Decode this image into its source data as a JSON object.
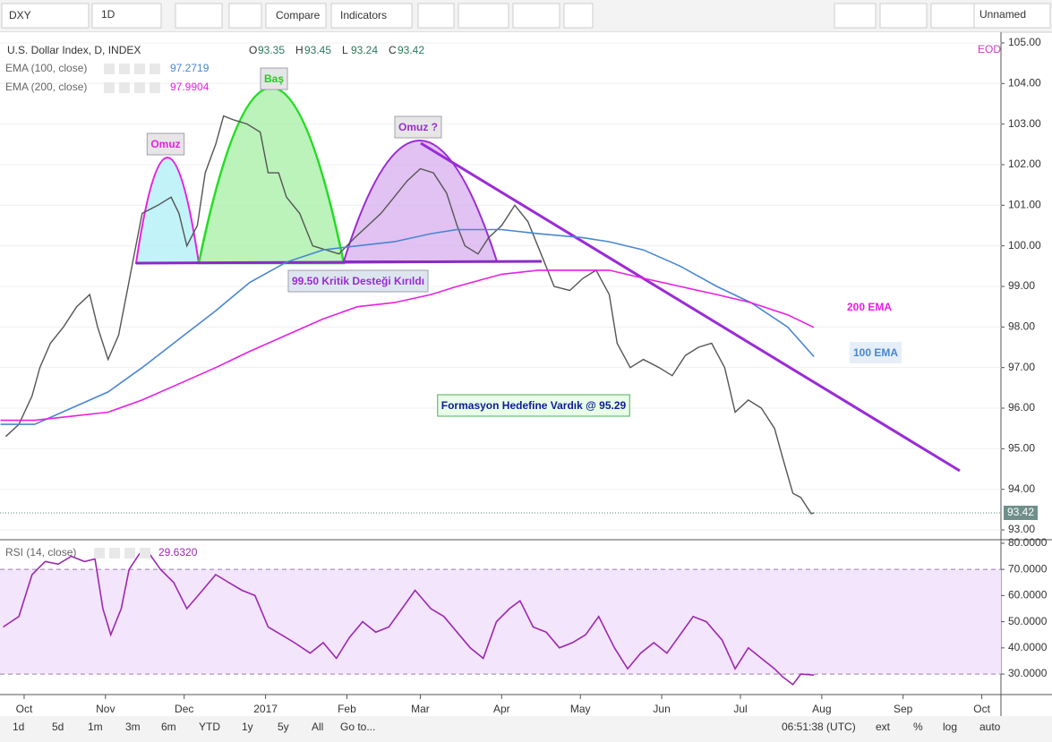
{
  "toolbar": {
    "symbol": "DXY",
    "interval": "1D",
    "compare": "Compare",
    "indicators": "Indicators",
    "layout_name": "Unnamed"
  },
  "chart_data": [
    {
      "type": "line",
      "title": "U.S. Dollar Index, D, INDEX",
      "ohlc": [
        {
          "label": "O",
          "value": 93.35
        },
        {
          "label": "H",
          "value": 93.45
        },
        {
          "label": "L",
          "value": 93.24
        },
        {
          "label": "C",
          "value": 93.42
        }
      ],
      "data_source": "EOD",
      "xlim": [
        -9.2,
        372.3
      ],
      "ylim": [
        92.78,
        105.22
      ],
      "yticks": [
        {
          "value": 93,
          "label": "93.00"
        },
        {
          "value": 94,
          "label": "94.00"
        },
        {
          "value": 95,
          "label": "95.00"
        },
        {
          "value": 96,
          "label": "96.00"
        },
        {
          "value": 97,
          "label": "97.00"
        },
        {
          "value": 98,
          "label": "98.00"
        },
        {
          "value": 99,
          "label": "99.00"
        },
        {
          "value": 100,
          "label": "100.00"
        },
        {
          "value": 101,
          "label": "101.00"
        },
        {
          "value": 102,
          "label": "102.00"
        },
        {
          "value": 103,
          "label": "103.00"
        },
        {
          "value": 104,
          "label": "104.00"
        },
        {
          "value": 105,
          "label": "105.00"
        }
      ],
      "grid": true,
      "last_price": 93.42,
      "series": [
        {
          "color": "#555555",
          "x": [
            -7,
            -2,
            3,
            6,
            10,
            15,
            20,
            25,
            28,
            32,
            36,
            39,
            42,
            45,
            51,
            56,
            59,
            62,
            66,
            69,
            73,
            76,
            80,
            85,
            90,
            93,
            97,
            100,
            105,
            110,
            115,
            120,
            126,
            131,
            136,
            141,
            146,
            151,
            156,
            161,
            165,
            168,
            173,
            177,
            182,
            187,
            192,
            197,
            202,
            208,
            213,
            218,
            223,
            226,
            231,
            236,
            242,
            247,
            252,
            257,
            262,
            267,
            271,
            276,
            281,
            286,
            289,
            293,
            296,
            300,
            301
          ],
          "values": [
            95.3,
            95.6,
            96.3,
            97.0,
            97.6,
            98.0,
            98.5,
            98.8,
            98.0,
            97.2,
            97.8,
            98.8,
            99.8,
            100.8,
            101.0,
            101.2,
            100.8,
            100.0,
            100.5,
            101.8,
            102.5,
            103.2,
            103.1,
            103.0,
            102.8,
            101.8,
            101.8,
            101.2,
            100.8,
            100.0,
            99.9,
            99.8,
            100.2,
            100.5,
            100.8,
            101.2,
            101.6,
            101.9,
            101.8,
            101.3,
            100.5,
            100.0,
            99.8,
            100.2,
            100.5,
            101.0,
            100.6,
            99.8,
            99.0,
            98.9,
            99.2,
            99.4,
            98.8,
            97.6,
            97.0,
            97.2,
            97.0,
            96.8,
            97.3,
            97.5,
            97.6,
            97.0,
            95.9,
            96.2,
            96.0,
            95.5,
            94.8,
            93.9,
            93.8,
            93.4,
            93.42
          ]
        },
        {
          "name": "EMA (100, close)",
          "color": "#4a86d0",
          "last": 97.2719,
          "x": [
            -9,
            4,
            18,
            32,
            45,
            59,
            73,
            86,
            100,
            114,
            127,
            141,
            155,
            165,
            182,
            196,
            213,
            223,
            236,
            250,
            264,
            277,
            291,
            301
          ],
          "values": [
            95.6,
            95.6,
            96.0,
            96.4,
            97.0,
            97.7,
            98.4,
            99.1,
            99.6,
            99.9,
            100.0,
            100.1,
            100.3,
            100.4,
            100.4,
            100.3,
            100.2,
            100.1,
            99.9,
            99.5,
            99.0,
            98.6,
            98.0,
            97.27
          ]
        },
        {
          "name": "EMA (200, close)",
          "color": "#e91ee3",
          "last": 97.9904,
          "x": [
            -9,
            4,
            18,
            32,
            45,
            59,
            73,
            86,
            100,
            114,
            127,
            141,
            155,
            165,
            182,
            196,
            213,
            223,
            236,
            250,
            264,
            277,
            291,
            301
          ],
          "values": [
            95.7,
            95.7,
            95.8,
            95.9,
            96.2,
            96.6,
            97.0,
            97.4,
            97.8,
            98.2,
            98.5,
            98.6,
            98.8,
            99.0,
            99.3,
            99.4,
            99.4,
            99.4,
            99.2,
            99.0,
            98.8,
            98.6,
            98.3,
            97.99
          ]
        }
      ],
      "annotations": [
        {
          "text": "Omuz",
          "color": "#e91ee3"
        },
        {
          "text": "Baş",
          "color": "#22cc22"
        },
        {
          "text": "Omuz ?",
          "color": "#9a2bd6"
        },
        {
          "text": "99.50 Kritik Desteği Kırıldı",
          "color": "#9a2bd6"
        },
        {
          "text": "Formasyon Hedefine Vardık @ 95.29",
          "color": "#0d1b9a"
        },
        {
          "text": "200 EMA",
          "color": "#e91ee3"
        },
        {
          "text": "100 EMA",
          "color": "#4a86d0"
        }
      ]
    },
    {
      "type": "line",
      "title": "RSI (14, close)",
      "last": {
        "value": 29.632,
        "label": "29.6320"
      },
      "xlim": [
        -9.2,
        372.3
      ],
      "ylim": [
        22.5,
        81
      ],
      "yticks": [
        {
          "value": 30,
          "label": "30.0000"
        },
        {
          "value": 40,
          "label": "40.0000"
        },
        {
          "value": 50,
          "label": "50.0000"
        },
        {
          "value": 60,
          "label": "60.0000"
        },
        {
          "value": 70,
          "label": "70.0000"
        },
        {
          "value": 80,
          "label": "80.0000"
        }
      ],
      "band": [
        30,
        70
      ],
      "xticks": [
        {
          "value": 0,
          "label": "Oct"
        },
        {
          "value": 31,
          "label": "Nov"
        },
        {
          "value": 61,
          "label": "Dec"
        },
        {
          "value": 92,
          "label": "2017"
        },
        {
          "value": 123,
          "label": "Feb"
        },
        {
          "value": 151,
          "label": "Mar"
        },
        {
          "value": 182,
          "label": "Apr"
        },
        {
          "value": 212,
          "label": "May"
        },
        {
          "value": 243,
          "label": "Jun"
        },
        {
          "value": 273,
          "label": "Jul"
        },
        {
          "value": 304,
          "label": "Aug"
        },
        {
          "value": 335,
          "label": "Sep"
        },
        {
          "value": 365,
          "label": "Oct"
        }
      ],
      "series": [
        {
          "color": "#9c27b0",
          "x": [
            -8,
            -2,
            3,
            8,
            13,
            18,
            23,
            27,
            30,
            33,
            37,
            40,
            44,
            47,
            52,
            57,
            62,
            68,
            73,
            78,
            83,
            88,
            93,
            98,
            103,
            109,
            114,
            119,
            124,
            129,
            134,
            139,
            144,
            149,
            155,
            160,
            165,
            170,
            175,
            180,
            185,
            189,
            194,
            199,
            204,
            209,
            214,
            219,
            225,
            230,
            235,
            240,
            245,
            250,
            255,
            260,
            266,
            271,
            276,
            281,
            286,
            289,
            293,
            296,
            301
          ],
          "values": [
            48,
            52,
            68,
            73,
            72,
            75,
            73,
            74,
            55,
            45,
            55,
            70,
            76,
            77,
            70,
            65,
            55,
            62,
            68,
            65,
            62,
            60,
            48,
            45,
            42,
            38,
            42,
            36,
            44,
            50,
            46,
            48,
            55,
            62,
            55,
            52,
            46,
            40,
            36,
            50,
            55,
            58,
            48,
            46,
            40,
            42,
            45,
            52,
            40,
            32,
            38,
            42,
            38,
            45,
            52,
            50,
            43,
            32,
            40,
            36,
            32,
            29,
            26,
            30,
            29.632
          ]
        }
      ]
    }
  ],
  "bottom_bar": {
    "ranges": [
      "1d",
      "5d",
      "1m",
      "3m",
      "6m",
      "YTD",
      "1y",
      "5y",
      "All"
    ],
    "goto": "Go to...",
    "clock": "06:51:38 (UTC)",
    "options": [
      "ext",
      "%",
      "log",
      "auto"
    ]
  }
}
